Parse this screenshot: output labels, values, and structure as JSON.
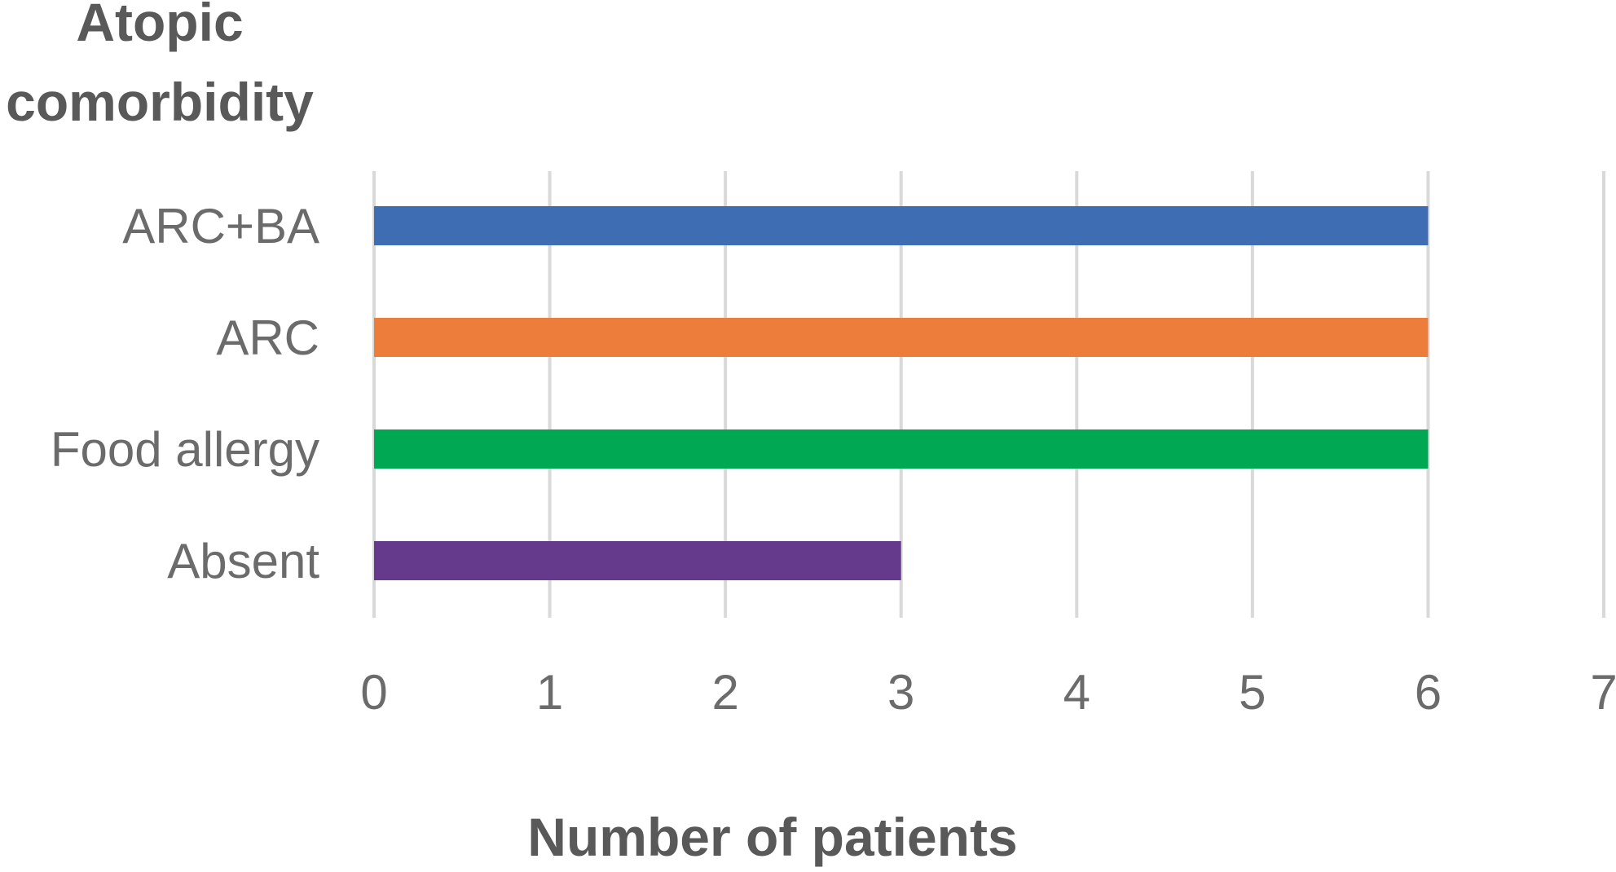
{
  "chart_data": {
    "type": "bar",
    "orientation": "horizontal",
    "ylabel": "Atopic comorbidity",
    "ylabel_lines": [
      "Atopic",
      "comorbidity"
    ],
    "xlabel": "Number of patients",
    "categories": [
      "ARC+BA",
      "ARC",
      "Food allergy",
      "Absent"
    ],
    "values": [
      6,
      6,
      6,
      3
    ],
    "colors": [
      "#3f6db3",
      "#ed7d3a",
      "#00a853",
      "#65398c"
    ],
    "xlim": [
      0,
      7
    ],
    "xticks": [
      0,
      1,
      2,
      3,
      4,
      5,
      6,
      7
    ],
    "grid": "vertical",
    "legend": "none"
  }
}
